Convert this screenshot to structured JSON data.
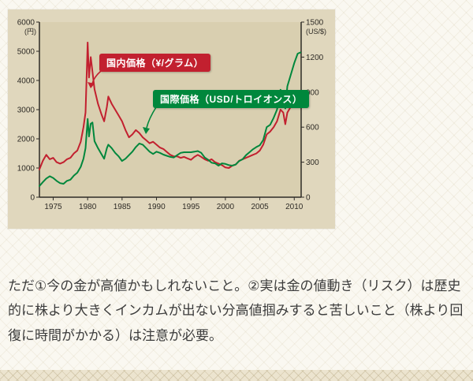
{
  "page": {
    "caption": "ただ①今の金が高値かもしれないこと。②実は金の値動き（リスク）は歴史的に株より大きくインカムが出ない分高値掴みすると苦しいこと（株より回復に時間がかかる）は注意が必要。"
  },
  "chart_data": {
    "type": "line",
    "title": "",
    "xlabel": "",
    "ylabel_left": "円/グラム",
    "ylabel_right": "USD/トロイオンス",
    "x_range": [
      1973,
      2011
    ],
    "x_ticks": [
      1975,
      1980,
      1985,
      1990,
      1995,
      2000,
      2005,
      2010
    ],
    "left_axis": {
      "unit": "(円)",
      "ticks": [
        0,
        1000,
        2000,
        3000,
        4000,
        5000,
        6000
      ],
      "range": [
        0,
        6000
      ]
    },
    "right_axis": {
      "unit": "(US/$)",
      "ticks": [
        0,
        300,
        600,
        900,
        1200,
        1500
      ],
      "range": [
        0,
        1500
      ]
    },
    "grid": false,
    "legend_position": "inline-callouts",
    "series": [
      {
        "name": "国内価格（¥/グラム）",
        "axis": "left",
        "color": "#c2202f",
        "points": [
          [
            1973,
            950
          ],
          [
            1973.5,
            1250
          ],
          [
            1974,
            1450
          ],
          [
            1974.5,
            1300
          ],
          [
            1975,
            1350
          ],
          [
            1975.5,
            1200
          ],
          [
            1976,
            1150
          ],
          [
            1976.5,
            1200
          ],
          [
            1977,
            1300
          ],
          [
            1977.5,
            1350
          ],
          [
            1978,
            1500
          ],
          [
            1978.5,
            1600
          ],
          [
            1979,
            1900
          ],
          [
            1979.4,
            2400
          ],
          [
            1979.7,
            2900
          ],
          [
            1980,
            5300
          ],
          [
            1980.2,
            4100
          ],
          [
            1980.45,
            4800
          ],
          [
            1980.7,
            4300
          ],
          [
            1981,
            3700
          ],
          [
            1981.5,
            3200
          ],
          [
            1982,
            2850
          ],
          [
            1982.4,
            2600
          ],
          [
            1982.8,
            3100
          ],
          [
            1983,
            3450
          ],
          [
            1983.5,
            3200
          ],
          [
            1984,
            3000
          ],
          [
            1984.5,
            2800
          ],
          [
            1985,
            2600
          ],
          [
            1985.5,
            2300
          ],
          [
            1986,
            2050
          ],
          [
            1986.5,
            2150
          ],
          [
            1987,
            2300
          ],
          [
            1987.5,
            2200
          ],
          [
            1988,
            2050
          ],
          [
            1988.5,
            1950
          ],
          [
            1989,
            1850
          ],
          [
            1989.5,
            1900
          ],
          [
            1990,
            1800
          ],
          [
            1990.5,
            1700
          ],
          [
            1991,
            1650
          ],
          [
            1991.5,
            1550
          ],
          [
            1992,
            1450
          ],
          [
            1992.5,
            1400
          ],
          [
            1993,
            1400
          ],
          [
            1993.5,
            1350
          ],
          [
            1994,
            1380
          ],
          [
            1994.5,
            1330
          ],
          [
            1995,
            1280
          ],
          [
            1995.5,
            1380
          ],
          [
            1996,
            1450
          ],
          [
            1996.5,
            1380
          ],
          [
            1997,
            1300
          ],
          [
            1997.5,
            1250
          ],
          [
            1998,
            1300
          ],
          [
            1998.5,
            1200
          ],
          [
            1999,
            1150
          ],
          [
            1999.5,
            1100
          ],
          [
            2000,
            1020
          ],
          [
            2000.5,
            1000
          ],
          [
            2001,
            1080
          ],
          [
            2001.5,
            1120
          ],
          [
            2002,
            1250
          ],
          [
            2002.5,
            1300
          ],
          [
            2003,
            1350
          ],
          [
            2003.5,
            1400
          ],
          [
            2004,
            1450
          ],
          [
            2004.5,
            1500
          ],
          [
            2005,
            1600
          ],
          [
            2005.5,
            1800
          ],
          [
            2006,
            2150
          ],
          [
            2006.5,
            2250
          ],
          [
            2007,
            2400
          ],
          [
            2007.5,
            2600
          ],
          [
            2008,
            3000
          ],
          [
            2008.4,
            2900
          ],
          [
            2008.7,
            2500
          ],
          [
            2009,
            2900
          ],
          [
            2009.5,
            3100
          ],
          [
            2010,
            3300
          ],
          [
            2010.5,
            3500
          ],
          [
            2010.9,
            3650
          ]
        ]
      },
      {
        "name": "国際価格（USD/トロイオンス）",
        "axis": "right",
        "color": "#00873c",
        "points": [
          [
            1973,
            95
          ],
          [
            1973.5,
            130
          ],
          [
            1974,
            160
          ],
          [
            1974.5,
            180
          ],
          [
            1975,
            165
          ],
          [
            1975.5,
            140
          ],
          [
            1976,
            120
          ],
          [
            1976.5,
            115
          ],
          [
            1977,
            140
          ],
          [
            1977.5,
            150
          ],
          [
            1978,
            185
          ],
          [
            1978.5,
            210
          ],
          [
            1979,
            260
          ],
          [
            1979.4,
            330
          ],
          [
            1979.7,
            420
          ],
          [
            1980,
            670
          ],
          [
            1980.2,
            520
          ],
          [
            1980.45,
            630
          ],
          [
            1980.7,
            640
          ],
          [
            1981,
            480
          ],
          [
            1981.5,
            420
          ],
          [
            1982,
            370
          ],
          [
            1982.4,
            330
          ],
          [
            1982.8,
            420
          ],
          [
            1983,
            450
          ],
          [
            1983.5,
            420
          ],
          [
            1984,
            380
          ],
          [
            1984.5,
            350
          ],
          [
            1985,
            310
          ],
          [
            1985.5,
            330
          ],
          [
            1986,
            360
          ],
          [
            1986.5,
            390
          ],
          [
            1987,
            430
          ],
          [
            1987.5,
            460
          ],
          [
            1988,
            450
          ],
          [
            1988.5,
            420
          ],
          [
            1989,
            390
          ],
          [
            1989.5,
            370
          ],
          [
            1990,
            390
          ],
          [
            1990.5,
            380
          ],
          [
            1991,
            365
          ],
          [
            1991.5,
            355
          ],
          [
            1992,
            345
          ],
          [
            1992.5,
            340
          ],
          [
            1993,
            360
          ],
          [
            1993.5,
            380
          ],
          [
            1994,
            385
          ],
          [
            1994.5,
            385
          ],
          [
            1995,
            385
          ],
          [
            1995.5,
            390
          ],
          [
            1996,
            395
          ],
          [
            1996.5,
            380
          ],
          [
            1997,
            340
          ],
          [
            1997.5,
            320
          ],
          [
            1998,
            295
          ],
          [
            1998.5,
            290
          ],
          [
            1999,
            270
          ],
          [
            1999.5,
            290
          ],
          [
            2000,
            285
          ],
          [
            2000.5,
            275
          ],
          [
            2001,
            270
          ],
          [
            2001.5,
            280
          ],
          [
            2002,
            310
          ],
          [
            2002.5,
            325
          ],
          [
            2003,
            360
          ],
          [
            2003.5,
            385
          ],
          [
            2004,
            410
          ],
          [
            2004.5,
            430
          ],
          [
            2005,
            445
          ],
          [
            2005.5,
            490
          ],
          [
            2006,
            600
          ],
          [
            2006.5,
            620
          ],
          [
            2007,
            680
          ],
          [
            2007.5,
            750
          ],
          [
            2008,
            920
          ],
          [
            2008.4,
            880
          ],
          [
            2008.7,
            760
          ],
          [
            2009,
            950
          ],
          [
            2009.5,
            1050
          ],
          [
            2010,
            1150
          ],
          [
            2010.5,
            1230
          ],
          [
            2010.9,
            1240
          ]
        ]
      }
    ]
  }
}
